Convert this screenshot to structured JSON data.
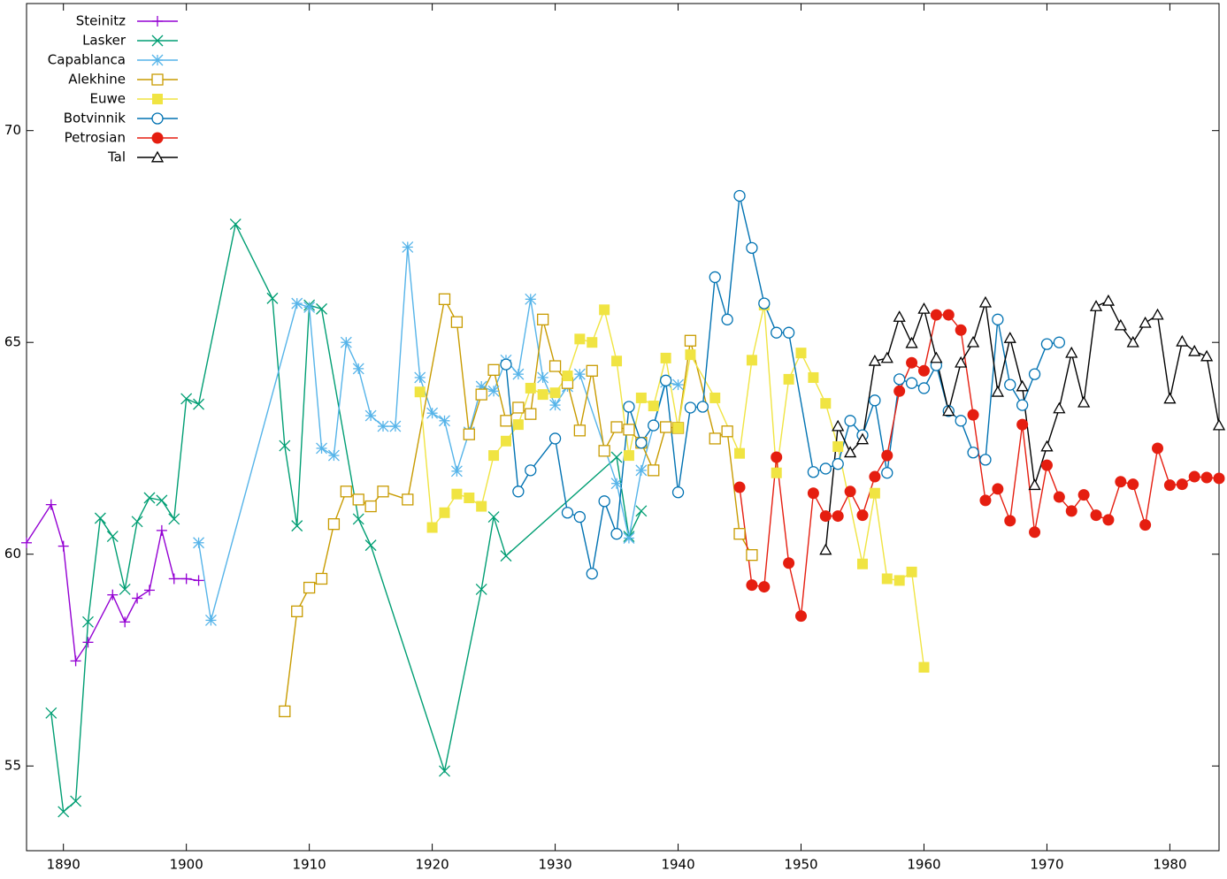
{
  "chart_data": {
    "type": "line",
    "xlim": [
      1887,
      1984
    ],
    "xticks": [
      1890,
      1900,
      1910,
      1920,
      1930,
      1940,
      1950,
      1960,
      1970,
      1980
    ],
    "ylim": [
      53,
      73
    ],
    "yticks": [
      55,
      60,
      65,
      70
    ],
    "legend": "top-left",
    "series": [
      {
        "name": "Steinitz",
        "color": "#9400d3",
        "marker": "plus",
        "x": [
          1887,
          1889,
          1890,
          1891,
          1892,
          1894,
          1895,
          1896,
          1897,
          1898,
          1899,
          1900,
          1901
        ],
        "values": [
          60.27,
          61.17,
          60.19,
          57.48,
          57.92,
          59.04,
          58.4,
          58.96,
          59.15,
          60.56,
          59.42,
          59.42,
          59.38
        ]
      },
      {
        "name": "Lasker",
        "color": "#009e73",
        "marker": "cross",
        "x": [
          1889,
          1890,
          1891,
          1892,
          1893,
          1894,
          1895,
          1896,
          1897,
          1898,
          1899,
          1900,
          1901,
          1904,
          1907,
          1908,
          1909,
          1910,
          1911,
          1914,
          1915,
          1921,
          1924,
          1925,
          1926,
          1935,
          1936,
          1937
        ],
        "values": [
          56.25,
          53.92,
          54.17,
          58.4,
          60.85,
          60.42,
          59.17,
          60.77,
          61.33,
          61.27,
          60.83,
          63.67,
          63.54,
          67.79,
          66.04,
          62.56,
          60.67,
          65.88,
          65.79,
          60.83,
          60.21,
          54.88,
          59.17,
          60.88,
          59.96,
          62.29,
          60.42,
          61.02
        ]
      },
      {
        "name": "Capablanca",
        "color": "#56b4e9",
        "marker": "star",
        "x": [
          1901,
          1902,
          1909,
          1910,
          1911,
          1912,
          1913,
          1914,
          1915,
          1916,
          1917,
          1918,
          1919,
          1920,
          1921,
          1922,
          1923,
          1924,
          1925,
          1926,
          1927,
          1928,
          1929,
          1930,
          1931,
          1932,
          1935,
          1936,
          1937,
          1939,
          1940
        ],
        "values": [
          60.27,
          58.44,
          65.92,
          65.83,
          62.5,
          62.33,
          65.0,
          64.38,
          63.27,
          63.02,
          63.02,
          67.25,
          64.17,
          63.33,
          63.15,
          61.96,
          62.88,
          63.96,
          63.85,
          64.58,
          64.25,
          66.02,
          64.17,
          63.52,
          63.96,
          64.25,
          61.67,
          60.38,
          61.98,
          64.06,
          64.0
        ]
      },
      {
        "name": "Alekhine",
        "color": "#c89b00",
        "marker": "square",
        "x": [
          1908,
          1909,
          1910,
          1911,
          1912,
          1913,
          1914,
          1915,
          1916,
          1918,
          1921,
          1922,
          1923,
          1924,
          1925,
          1926,
          1927,
          1928,
          1929,
          1930,
          1931,
          1932,
          1933,
          1934,
          1935,
          1936,
          1937,
          1938,
          1939,
          1940,
          1941,
          1943,
          1944,
          1945,
          1946
        ],
        "values": [
          56.29,
          58.65,
          59.21,
          59.42,
          60.71,
          61.48,
          61.29,
          61.13,
          61.48,
          61.29,
          66.02,
          65.48,
          62.83,
          63.77,
          64.35,
          63.15,
          63.46,
          63.31,
          65.54,
          64.44,
          64.04,
          62.92,
          64.33,
          62.44,
          63.0,
          62.94,
          62.63,
          61.98,
          63.0,
          62.98,
          65.04,
          62.73,
          62.9,
          60.48,
          59.98
        ]
      },
      {
        "name": "Euwe",
        "color": "#f0e442",
        "marker": "filled-square",
        "x": [
          1919,
          1920,
          1921,
          1922,
          1923,
          1924,
          1925,
          1926,
          1927,
          1928,
          1929,
          1930,
          1931,
          1932,
          1933,
          1934,
          1935,
          1936,
          1937,
          1938,
          1939,
          1940,
          1941,
          1943,
          1945,
          1946,
          1947,
          1948,
          1949,
          1950,
          1951,
          1952,
          1953,
          1955,
          1956,
          1957,
          1958,
          1959,
          1960
        ],
        "values": [
          63.83,
          60.63,
          60.98,
          61.42,
          61.33,
          61.13,
          62.33,
          62.67,
          63.06,
          63.92,
          63.77,
          63.81,
          64.21,
          65.08,
          65.0,
          65.77,
          64.56,
          62.33,
          63.69,
          63.5,
          64.63,
          62.98,
          64.71,
          63.69,
          62.38,
          64.58,
          65.88,
          61.92,
          64.13,
          64.75,
          64.17,
          63.56,
          62.54,
          59.77,
          61.44,
          59.42,
          59.38,
          59.58,
          57.33
        ]
      },
      {
        "name": "Botvinnik",
        "color": "#0072b2",
        "marker": "circle",
        "x": [
          1926,
          1927,
          1928,
          1930,
          1931,
          1932,
          1933,
          1934,
          1935,
          1936,
          1937,
          1938,
          1939,
          1940,
          1941,
          1942,
          1943,
          1944,
          1945,
          1946,
          1947,
          1948,
          1949,
          1951,
          1952,
          1953,
          1954,
          1955,
          1956,
          1957,
          1958,
          1959,
          1960,
          1961,
          1962,
          1963,
          1964,
          1965,
          1966,
          1967,
          1968,
          1969,
          1970,
          1971
        ],
        "values": [
          64.48,
          61.48,
          61.98,
          62.73,
          60.98,
          60.88,
          59.54,
          61.25,
          60.48,
          63.48,
          62.63,
          63.04,
          64.1,
          61.46,
          63.46,
          63.48,
          66.54,
          65.54,
          68.46,
          67.23,
          65.92,
          65.23,
          65.23,
          61.94,
          62.02,
          62.13,
          63.15,
          62.81,
          63.63,
          61.92,
          64.13,
          64.04,
          63.92,
          64.46,
          63.38,
          63.15,
          62.4,
          62.23,
          65.54,
          64.0,
          63.52,
          64.25,
          64.96,
          65.0
        ]
      },
      {
        "name": "Petrosian",
        "color": "#e51e10",
        "marker": "filled-circle",
        "x": [
          1945,
          1946,
          1947,
          1948,
          1949,
          1950,
          1951,
          1952,
          1953,
          1954,
          1955,
          1956,
          1957,
          1958,
          1959,
          1960,
          1961,
          1962,
          1963,
          1964,
          1965,
          1966,
          1967,
          1968,
          1969,
          1970,
          1971,
          1972,
          1973,
          1974,
          1975,
          1976,
          1977,
          1978,
          1979,
          1980,
          1981,
          1982,
          1983,
          1984
        ],
        "values": [
          61.58,
          59.27,
          59.23,
          62.29,
          59.79,
          58.54,
          61.44,
          60.9,
          60.9,
          61.48,
          60.92,
          61.83,
          62.33,
          63.85,
          64.52,
          64.33,
          65.65,
          65.65,
          65.29,
          63.29,
          61.27,
          61.54,
          60.79,
          63.06,
          60.52,
          62.1,
          61.35,
          61.02,
          61.4,
          60.92,
          60.81,
          61.71,
          61.65,
          60.69,
          62.5,
          61.63,
          61.65,
          61.83,
          61.81,
          61.79
        ]
      },
      {
        "name": "Tal",
        "color": "#000000",
        "marker": "triangle",
        "x": [
          1952,
          1953,
          1954,
          1955,
          1956,
          1957,
          1958,
          1959,
          1960,
          1961,
          1962,
          1963,
          1964,
          1965,
          1966,
          1967,
          1968,
          1969,
          1970,
          1971,
          1972,
          1973,
          1974,
          1975,
          1976,
          1977,
          1978,
          1979,
          1980,
          1981,
          1982,
          1983,
          1984
        ],
        "values": [
          60.1,
          63.02,
          62.4,
          62.71,
          64.56,
          64.63,
          65.6,
          64.98,
          65.79,
          64.63,
          63.38,
          64.52,
          65.0,
          65.94,
          63.83,
          65.1,
          63.96,
          61.63,
          62.54,
          63.44,
          64.75,
          63.58,
          65.85,
          65.98,
          65.4,
          65.0,
          65.46,
          65.65,
          63.67,
          65.02,
          64.79,
          64.67,
          63.04
        ]
      }
    ]
  }
}
